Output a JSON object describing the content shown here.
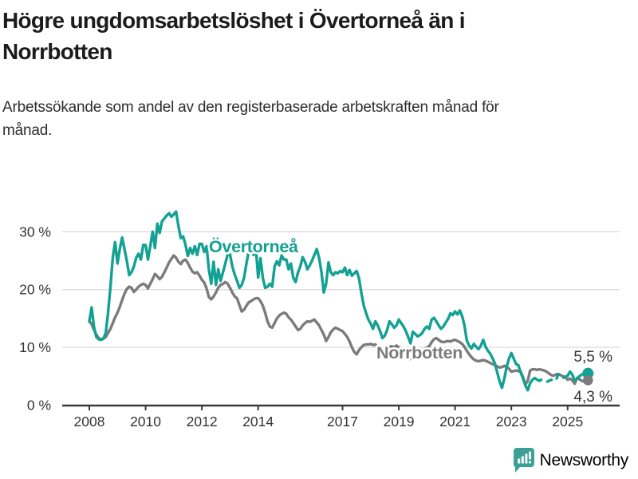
{
  "header": {
    "title": "Högre ungdomsarbetslöshet i Övertorneå än i Norrbotten",
    "subtitle": "Arbetssökande som andel av den registerbaserade arbetskraften månad för månad."
  },
  "branding": {
    "logo_text": "Newsworthy",
    "logo_color": "#3ba196"
  },
  "colors": {
    "overtornea_line": "#12a192",
    "norrbotten_line": "#7b7b7b",
    "grid": "#dcdcdc",
    "axis": "#3a3a3a",
    "tick_text": "#333333"
  },
  "chart_data": {
    "type": "line",
    "title": "Högre ungdomsarbetslöshet i Övertorneå än i Norrbotten",
    "subtitle": "Arbetssökande som andel av den registerbaserade arbetskraften månad för månad.",
    "frequency": "monthly",
    "x_start_year": 2008,
    "x_start_month": 1,
    "x_end_year": 2025,
    "x_end_month": 9,
    "x_tick_years": [
      2008,
      2010,
      2012,
      2014,
      2017,
      2019,
      2021,
      2023,
      2025
    ],
    "y_ticks": [
      0,
      10,
      20,
      30
    ],
    "y_tick_suffix": " %",
    "ylim": [
      0,
      35
    ],
    "grid": "horizontal-only",
    "legend_position": "inline-labels",
    "series": [
      {
        "name": "Övertorneå",
        "color": "#12a192",
        "end_label": "5,5 %",
        "end_value": 5.5,
        "dash_segment": [
          191,
          204
        ],
        "values": [
          14.5,
          16.9,
          13.5,
          11.8,
          11.4,
          11.3,
          11.5,
          12.5,
          16.0,
          20.5,
          25.5,
          28.2,
          24.5,
          27.0,
          29.0,
          27.0,
          25.0,
          22.5,
          23.0,
          24.0,
          25.5,
          26.2,
          25.2,
          27.7,
          27.7,
          25.2,
          27.5,
          30.0,
          27.2,
          31.4,
          29.8,
          31.8,
          32.3,
          32.8,
          33.2,
          32.6,
          33.0,
          33.5,
          31.0,
          28.9,
          29.2,
          27.8,
          25.8,
          27.2,
          26.2,
          27.5,
          26.0,
          27.9,
          27.9,
          26.5,
          27.5,
          23.5,
          21.0,
          24.8,
          20.8,
          23.5,
          21.5,
          23.0,
          24.5,
          26.1,
          26.1,
          24.0,
          22.6,
          21.5,
          20.3,
          20.8,
          22.0,
          24.5,
          26.6,
          27.8,
          26.0,
          27.5,
          22.1,
          25.4,
          22.0,
          20.3,
          20.5,
          21.0,
          20.5,
          24.0,
          24.9,
          24.2,
          25.9,
          25.2,
          25.2,
          23.5,
          24.5,
          22.0,
          21.3,
          23.0,
          24.0,
          25.6,
          24.8,
          23.5,
          24.2,
          25.0,
          26.0,
          27.0,
          25.5,
          23.0,
          19.5,
          21.0,
          24.7,
          23.0,
          22.5,
          23.0,
          22.8,
          23.2,
          23.0,
          23.8,
          22.5,
          23.4,
          22.4,
          22.8,
          23.2,
          22.0,
          19.5,
          17.3,
          16.0,
          14.8,
          14.1,
          13.2,
          14.5,
          13.8,
          12.8,
          11.6,
          12.0,
          13.0,
          14.5,
          14.0,
          13.4,
          13.8,
          14.8,
          14.2,
          13.6,
          12.8,
          11.8,
          10.7,
          12.7,
          12.3,
          11.9,
          12.1,
          12.5,
          13.2,
          13.6,
          13.2,
          14.8,
          15.1,
          14.5,
          13.8,
          13.2,
          13.6,
          14.3,
          14.9,
          15.9,
          15.6,
          16.2,
          15.7,
          16.4,
          15.4,
          13.8,
          11.2,
          10.3,
          9.8,
          10.6,
          10.1,
          9.7,
          10.3,
          11.3,
          10.1,
          9.4,
          8.9,
          8.1,
          7.2,
          5.6,
          4.1,
          3.0,
          4.6,
          6.6,
          8.1,
          9.0,
          8.1,
          7.1,
          6.9,
          5.6,
          4.6,
          3.4,
          2.6,
          3.8,
          4.4,
          4.7,
          4.4,
          4.2,
          4.5,
          4.3,
          4.0,
          4.2,
          4.4,
          4.1,
          4.3,
          5.3,
          4.6,
          4.7,
          4.9,
          5.1,
          5.8,
          5.3,
          4.2,
          4.6,
          5.0,
          5.3,
          5.4,
          5.5
        ]
      },
      {
        "name": "Norrbotten",
        "color": "#7b7b7b",
        "end_label": "4,3 %",
        "end_value": 4.3,
        "values": [
          14.5,
          14.0,
          13.0,
          12.2,
          11.6,
          11.4,
          11.5,
          11.8,
          12.5,
          13.2,
          14.2,
          15.2,
          16.0,
          17.0,
          18.2,
          19.3,
          20.1,
          20.5,
          20.3,
          19.6,
          20.0,
          20.5,
          20.8,
          21.0,
          20.8,
          20.2,
          21.0,
          21.8,
          22.7,
          22.3,
          21.8,
          22.2,
          23.0,
          23.8,
          24.7,
          25.3,
          25.9,
          25.5,
          24.8,
          24.4,
          25.0,
          25.2,
          24.6,
          23.8,
          23.1,
          22.8,
          23.0,
          22.4,
          21.7,
          21.2,
          20.2,
          18.7,
          18.3,
          18.8,
          19.5,
          20.3,
          20.8,
          21.0,
          21.3,
          21.0,
          20.3,
          19.5,
          18.8,
          18.5,
          17.3,
          16.2,
          16.5,
          17.2,
          17.8,
          18.0,
          18.3,
          18.5,
          18.5,
          18.0,
          17.2,
          16.0,
          14.5,
          13.6,
          13.4,
          14.2,
          15.0,
          15.5,
          15.8,
          16.0,
          15.8,
          15.2,
          14.8,
          14.2,
          13.6,
          13.0,
          13.2,
          13.8,
          14.2,
          14.5,
          14.4,
          14.6,
          14.8,
          14.3,
          13.8,
          13.0,
          12.2,
          11.1,
          11.8,
          12.6,
          13.1,
          13.4,
          13.2,
          13.0,
          12.8,
          12.3,
          11.8,
          11.0,
          10.0,
          9.2,
          8.8,
          9.5,
          10.0,
          10.4,
          10.5,
          10.5,
          10.6,
          10.4,
          10.5,
          10.0,
          9.6,
          9.3,
          9.5,
          9.8,
          10.1,
          10.2,
          10.0,
          10.3,
          10.0,
          9.7,
          9.3,
          8.8,
          8.3,
          8.0,
          8.3,
          8.7,
          9.0,
          9.2,
          9.4,
          9.7,
          10.0,
          10.2,
          10.9,
          11.4,
          11.6,
          11.3,
          11.0,
          10.9,
          11.0,
          11.1,
          11.0,
          11.2,
          11.3,
          11.1,
          10.9,
          10.6,
          10.1,
          9.4,
          8.8,
          8.3,
          7.9,
          7.7,
          7.6,
          7.7,
          7.8,
          7.7,
          7.5,
          7.3,
          7.1,
          6.9,
          6.7,
          6.5,
          6.6,
          6.8,
          6.6,
          6.3,
          5.8,
          5.9,
          6.0,
          5.9,
          5.8,
          4.8,
          3.6,
          4.2,
          6.0,
          6.2,
          6.2,
          6.1,
          6.2,
          6.1,
          6.0,
          5.8,
          5.5,
          5.2,
          5.1,
          5.3,
          5.4,
          5.2,
          5.0,
          4.8,
          4.4,
          4.6,
          4.3,
          3.7,
          4.7,
          4.5,
          4.2,
          4.1,
          4.3
        ]
      }
    ]
  }
}
